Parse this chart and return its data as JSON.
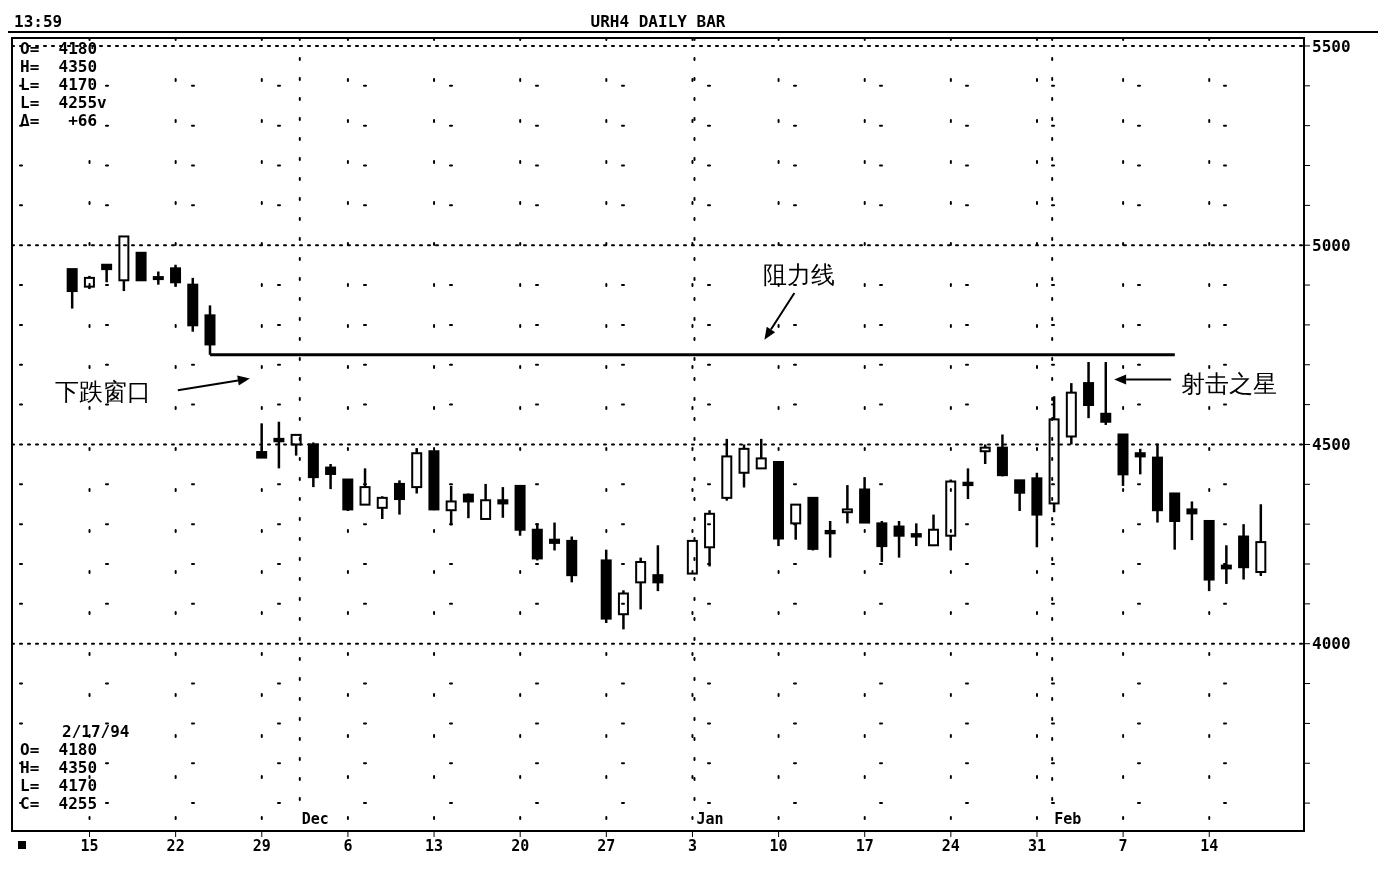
{
  "chart_data": {
    "type": "candlestick",
    "title": "URH4 DAILY BAR",
    "categories": [
      null,
      null,
      null,
      null,
      "15",
      null,
      null,
      null,
      null,
      "22",
      null,
      null,
      null,
      null,
      "29",
      null,
      null,
      null,
      null,
      "6",
      null,
      null,
      null,
      null,
      "13",
      null,
      null,
      null,
      null,
      "20",
      null,
      null,
      null,
      null,
      "27",
      null,
      null,
      null,
      null,
      "3",
      null,
      null,
      null,
      null,
      "10",
      null,
      null,
      null,
      null,
      "17",
      null,
      null,
      null,
      null,
      "24",
      null,
      null,
      null,
      null,
      "31",
      null,
      null,
      null,
      null,
      "7",
      null,
      null,
      null,
      null,
      "14",
      null,
      null,
      null,
      null,
      null
    ],
    "ohlc": [
      null,
      null,
      null,
      [
        4940,
        4940,
        4841,
        4885
      ],
      [
        4896,
        4923,
        4890,
        4918
      ],
      [
        4951,
        4951,
        4907,
        4940
      ],
      [
        4912,
        5022,
        4885,
        5022
      ],
      [
        4981,
        4981,
        4912,
        4912
      ],
      [
        4920,
        4934,
        4901,
        4915
      ],
      [
        4942,
        4951,
        4896,
        4907
      ],
      [
        4901,
        4918,
        4783,
        4799
      ],
      [
        4824,
        4849,
        4725,
        4751
      ],
      null,
      null,
      [
        4481,
        4553,
        4467,
        4467
      ],
      [
        4514,
        4557,
        4440,
        4508
      ],
      [
        4500,
        4524,
        4472,
        4524
      ],
      [
        4500,
        4505,
        4393,
        4418
      ],
      [
        4442,
        4451,
        4388,
        4426
      ],
      [
        4412,
        4412,
        4333,
        4337
      ],
      [
        4349,
        4440,
        4349,
        4393
      ],
      [
        4341,
        4370,
        4313,
        4366
      ],
      [
        4401,
        4410,
        4324,
        4363
      ],
      [
        4393,
        4491,
        4377,
        4478
      ],
      [
        4483,
        4483,
        4335,
        4337
      ],
      [
        4335,
        4396,
        4297,
        4357
      ],
      [
        4374,
        4377,
        4315,
        4357
      ],
      [
        4313,
        4401,
        4313,
        4360
      ],
      [
        4360,
        4393,
        4316,
        4352
      ],
      [
        4396,
        4396,
        4271,
        4286
      ],
      [
        4286,
        4302,
        4209,
        4214
      ],
      [
        4261,
        4304,
        4234,
        4253
      ],
      [
        4258,
        4269,
        4154,
        4172
      ],
      null,
      [
        4209,
        4236,
        4052,
        4063
      ],
      [
        4074,
        4134,
        4036,
        4126
      ],
      [
        4154,
        4216,
        4086,
        4205
      ],
      [
        4172,
        4247,
        4132,
        4154
      ],
      null,
      [
        4176,
        4258,
        4176,
        4258
      ],
      [
        4242,
        4335,
        4194,
        4326
      ],
      [
        4366,
        4514,
        4359,
        4470
      ],
      [
        4429,
        4500,
        4392,
        4489
      ],
      [
        4440,
        4514,
        4440,
        4465
      ],
      [
        4456,
        4456,
        4245,
        4264
      ],
      [
        4302,
        4349,
        4261,
        4349
      ],
      [
        4366,
        4366,
        4234,
        4238
      ],
      [
        4283,
        4308,
        4216,
        4277
      ],
      [
        4330,
        4398,
        4302,
        4337
      ],
      [
        4387,
        4418,
        4304,
        4304
      ],
      [
        4302,
        4308,
        4205,
        4245
      ],
      [
        4294,
        4308,
        4216,
        4271
      ],
      [
        4275,
        4302,
        4245,
        4269
      ],
      [
        4247,
        4324,
        4245,
        4286
      ],
      [
        4271,
        4412,
        4234,
        4407
      ],
      [
        4404,
        4440,
        4363,
        4398
      ],
      [
        4483,
        4500,
        4451,
        4492
      ],
      [
        4492,
        4525,
        4420,
        4423
      ],
      [
        4410,
        4410,
        4333,
        4379
      ],
      [
        4415,
        4429,
        4242,
        4324
      ],
      [
        4352,
        4621,
        4330,
        4563
      ],
      [
        4520,
        4654,
        4500,
        4630
      ],
      [
        4654,
        4707,
        4566,
        4599
      ],
      [
        4577,
        4707,
        4549,
        4557
      ],
      [
        4525,
        4525,
        4396,
        4425
      ],
      [
        4478,
        4489,
        4425,
        4470
      ],
      [
        4467,
        4502,
        4304,
        4335
      ],
      [
        4377,
        4377,
        4236,
        4308
      ],
      [
        4337,
        4357,
        4260,
        4327
      ],
      [
        4308,
        4308,
        4132,
        4161
      ],
      [
        4196,
        4247,
        4150,
        4189
      ],
      [
        4269,
        4300,
        4161,
        4192
      ],
      [
        4180,
        4350,
        4170,
        4255
      ],
      null,
      null
    ],
    "color": "#000000",
    "series": [
      {
        "type": "line",
        "color": "#000000",
        "values": [
          null,
          null,
          null,
          null,
          null,
          null,
          null,
          null,
          null,
          null,
          null,
          4725,
          4725,
          4725,
          4725,
          4725,
          4725,
          4725,
          4725,
          4725,
          4725,
          4725,
          4725,
          4725,
          4725,
          4725,
          4725,
          4725,
          4725,
          4725,
          4725,
          4725,
          4725,
          4725,
          4725,
          4725,
          4725,
          4725,
          4725,
          4725,
          4725,
          4725,
          4725,
          4725,
          4725,
          4725,
          4725,
          4725,
          4725,
          4725,
          4725,
          4725,
          4725,
          4725,
          4725,
          4725,
          4725,
          4725,
          4725,
          4725,
          4725,
          4725,
          4725,
          4725,
          4725,
          4725,
          4725,
          4725,
          null,
          null,
          null,
          null,
          null,
          null,
          null
        ]
      }
    ],
    "ylim": [
      3530,
      5520
    ],
    "yticks": [
      {
        "value": 3600,
        "label": null
      },
      {
        "value": 3700,
        "label": null
      },
      {
        "value": 3800,
        "label": null
      },
      {
        "value": 3900,
        "label": null
      },
      4000,
      {
        "value": 4100,
        "label": null
      },
      {
        "value": 4200,
        "label": null
      },
      {
        "value": 4300,
        "label": null
      },
      {
        "value": 4400,
        "label": null
      },
      4500,
      {
        "value": 4600,
        "label": null
      },
      {
        "value": 4700,
        "label": null
      },
      {
        "value": 4800,
        "label": null
      },
      {
        "value": 4900,
        "label": null
      },
      5000,
      {
        "value": 5100,
        "label": null
      },
      {
        "value": 5200,
        "label": null
      },
      {
        "value": 5300,
        "label": null
      },
      {
        "value": 5400,
        "label": null
      },
      5500
    ],
    "grid": true,
    "annotations": [
      "13:59",
      "O=  4180",
      "H=  4350",
      "L=  4170",
      "L=  4255v",
      "Δ=   +66",
      "2/17/94",
      "O=  4180",
      "H=  4350",
      "L=  4170",
      "C=  4255",
      "Dec",
      "Jan",
      "Feb",
      "阻力线",
      "下跌窗口",
      "射击之星"
    ]
  }
}
